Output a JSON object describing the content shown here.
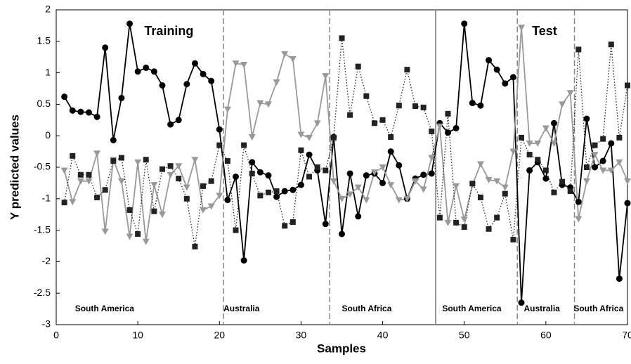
{
  "chart_data": {
    "type": "line",
    "xlabel": "Samples",
    "ylabel": "Y predicted values",
    "x": [
      1,
      2,
      3,
      4,
      5,
      6,
      7,
      8,
      9,
      10,
      11,
      12,
      13,
      14,
      15,
      16,
      17,
      18,
      19,
      20,
      21,
      22,
      23,
      24,
      25,
      26,
      27,
      28,
      29,
      30,
      31,
      32,
      33,
      34,
      35,
      36,
      37,
      38,
      39,
      40,
      41,
      42,
      43,
      44,
      45,
      46,
      47,
      48,
      49,
      50,
      51,
      52,
      53,
      54,
      55,
      56,
      57,
      58,
      59,
      60,
      61,
      62,
      63,
      64,
      65,
      66,
      67,
      68,
      69,
      70
    ],
    "series": [
      {
        "color": "#000000",
        "marker": "circle",
        "linestyle": "solid",
        "values": [
          0.62,
          0.4,
          0.38,
          0.37,
          0.3,
          1.4,
          -0.07,
          0.6,
          1.78,
          1.02,
          1.08,
          1.02,
          0.8,
          0.18,
          0.25,
          0.82,
          1.15,
          0.98,
          0.87,
          0.1,
          -1.02,
          -0.65,
          -1.98,
          -0.42,
          -0.58,
          -0.63,
          -0.97,
          -0.88,
          -0.86,
          -0.78,
          -0.3,
          -0.55,
          -1.4,
          -0.02,
          -1.56,
          -0.6,
          -1.28,
          -0.63,
          -0.6,
          -0.75,
          -0.25,
          -0.47,
          -1.0,
          -0.68,
          -0.62,
          -0.6,
          0.2,
          0.05,
          0.12,
          1.78,
          0.52,
          0.48,
          1.2,
          1.05,
          0.83,
          0.93,
          -2.65,
          -0.55,
          -0.42,
          -0.68,
          0.2,
          -0.78,
          -0.82,
          -1.05,
          0.27,
          -0.5,
          -0.4,
          -0.12,
          -2.27,
          -1.07
        ]
      },
      {
        "color": "#999999",
        "marker": "triangle",
        "linestyle": "solid",
        "values": [
          -0.55,
          -1.05,
          -0.72,
          -0.72,
          -0.28,
          -1.52,
          -0.38,
          -0.72,
          -1.6,
          -0.42,
          -1.68,
          -0.78,
          -1.25,
          -0.62,
          -0.48,
          -0.82,
          -0.38,
          -1.18,
          -1.12,
          -0.95,
          0.42,
          1.15,
          1.13,
          -0.02,
          0.52,
          0.5,
          0.85,
          1.3,
          1.22,
          0.02,
          -0.03,
          0.2,
          0.95,
          -0.72,
          -1.0,
          -0.93,
          -0.82,
          -1.02,
          -0.58,
          -0.5,
          -0.78,
          -1.02,
          -1.0,
          -0.72,
          -0.85,
          -0.35,
          0.15,
          -1.38,
          -0.8,
          -1.33,
          -0.78,
          -0.45,
          -0.7,
          -0.72,
          -0.82,
          -0.25,
          1.72,
          -0.12,
          -0.12,
          0.12,
          -0.12,
          0.5,
          0.68,
          -1.32,
          -0.72,
          -0.3,
          -0.55,
          -0.55,
          -0.42,
          -0.72
        ]
      },
      {
        "color": "#222222",
        "marker": "square",
        "linestyle": "dotted",
        "values": [
          -1.06,
          -0.32,
          -0.62,
          -0.62,
          -0.98,
          -0.86,
          -0.4,
          -0.35,
          -1.18,
          -1.56,
          -0.38,
          -1.2,
          -0.53,
          -0.48,
          -0.68,
          -1.0,
          -1.76,
          -0.8,
          -0.72,
          -0.15,
          -0.4,
          -1.5,
          -0.15,
          -0.6,
          -0.95,
          -0.9,
          -0.88,
          -1.43,
          -1.37,
          -0.23,
          -0.65,
          -0.5,
          -0.55,
          -0.03,
          1.55,
          0.33,
          1.1,
          0.63,
          0.2,
          0.25,
          -0.02,
          0.48,
          1.05,
          0.47,
          0.45,
          0.07,
          -1.3,
          0.35,
          -1.38,
          -1.45,
          -0.76,
          -0.98,
          -1.48,
          -1.3,
          -0.92,
          -1.65,
          -0.03,
          -0.3,
          -0.38,
          -0.55,
          -0.9,
          -0.73,
          -0.88,
          1.37,
          -0.5,
          -0.15,
          -0.05,
          1.45,
          -0.03,
          0.8
        ]
      }
    ],
    "xlim": [
      0,
      70
    ],
    "ylim": [
      -3,
      2
    ],
    "xticks": [
      0,
      10,
      20,
      30,
      40,
      50,
      60,
      70
    ],
    "yticks": [
      -3,
      -2.5,
      -2,
      -1.5,
      -1,
      -0.5,
      0,
      0.5,
      1,
      1.5,
      2
    ],
    "dividers": [
      {
        "x": 20.5,
        "style": "dashed"
      },
      {
        "x": 33.5,
        "style": "dashed"
      },
      {
        "x": 46.5,
        "style": "solid"
      },
      {
        "x": 56.5,
        "style": "dashed"
      },
      {
        "x": 63.5,
        "style": "dashed"
      }
    ],
    "regions": [
      {
        "label": "South America",
        "x": 2.3
      },
      {
        "label": "Australia",
        "x": 20.5
      },
      {
        "label": "South Africa",
        "x": 35
      },
      {
        "label": "South America",
        "x": 47.3
      },
      {
        "label": "Australia",
        "x": 57.3
      },
      {
        "label": "South Africa",
        "x": 63.4
      }
    ],
    "phases": [
      {
        "label": "Training",
        "x": 10.8,
        "y": 1.65
      },
      {
        "label": "Test",
        "x": 58.3,
        "y": 1.65
      }
    ]
  }
}
